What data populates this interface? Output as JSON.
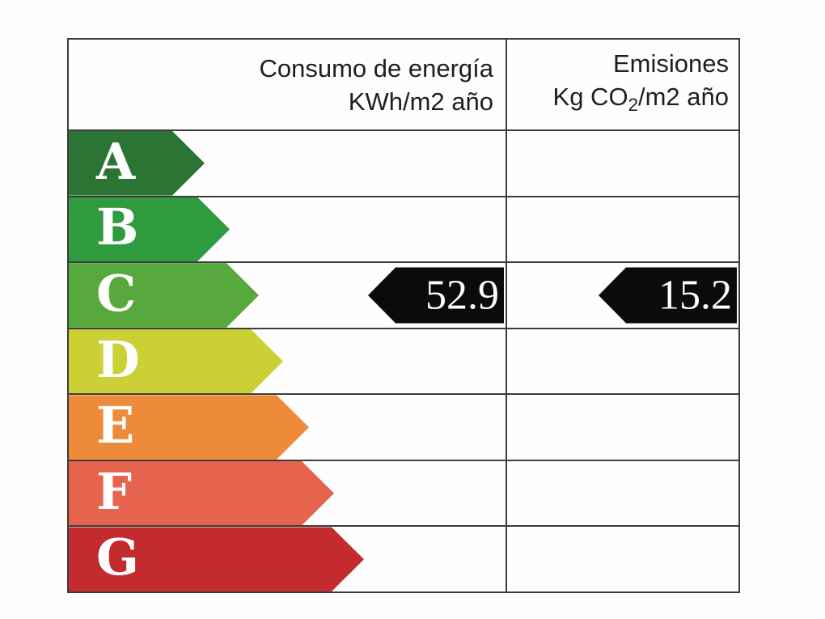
{
  "chart_data": {
    "type": "table",
    "title": "",
    "columns": [
      "Consumo de energía KWh/m2 año",
      "Emisiones Kg CO2/m2 año"
    ],
    "categories": [
      "A",
      "B",
      "C",
      "D",
      "E",
      "F",
      "G"
    ],
    "rating": "C",
    "values": {
      "consumo_kwh_m2_ano": 52.9,
      "emisiones_kg_co2_m2_ano": 15.2
    },
    "legend_position": "none",
    "grid": "table-borders"
  },
  "header": {
    "energy": {
      "title": "Consumo de energía",
      "unit": "KWh/m2 año"
    },
    "emissions": {
      "title": "Emisiones",
      "unit_pre": "Kg CO",
      "unit_sub": "2",
      "unit_post": "/m2 año"
    }
  },
  "ratings": [
    {
      "grade": "A",
      "color": "#2c7434",
      "arrow_width": 168
    },
    {
      "grade": "B",
      "color": "#2f9a3e",
      "arrow_width": 199
    },
    {
      "grade": "C",
      "color": "#57a83d",
      "arrow_width": 235
    },
    {
      "grade": "D",
      "color": "#cbd135",
      "arrow_width": 265
    },
    {
      "grade": "E",
      "color": "#ee8b3b",
      "arrow_width": 297
    },
    {
      "grade": "F",
      "color": "#e6634d",
      "arrow_width": 328
    },
    {
      "grade": "G",
      "color": "#c32b2f",
      "arrow_width": 365
    }
  ],
  "values": {
    "consumption": "52.9",
    "emissions": "15.2",
    "arrow_color": "#0c0b09",
    "rating_row_index": 2
  },
  "colors": {
    "border": "#3c3c3c",
    "background": "#fdfdfb",
    "header_text": "#1f1f1f"
  }
}
